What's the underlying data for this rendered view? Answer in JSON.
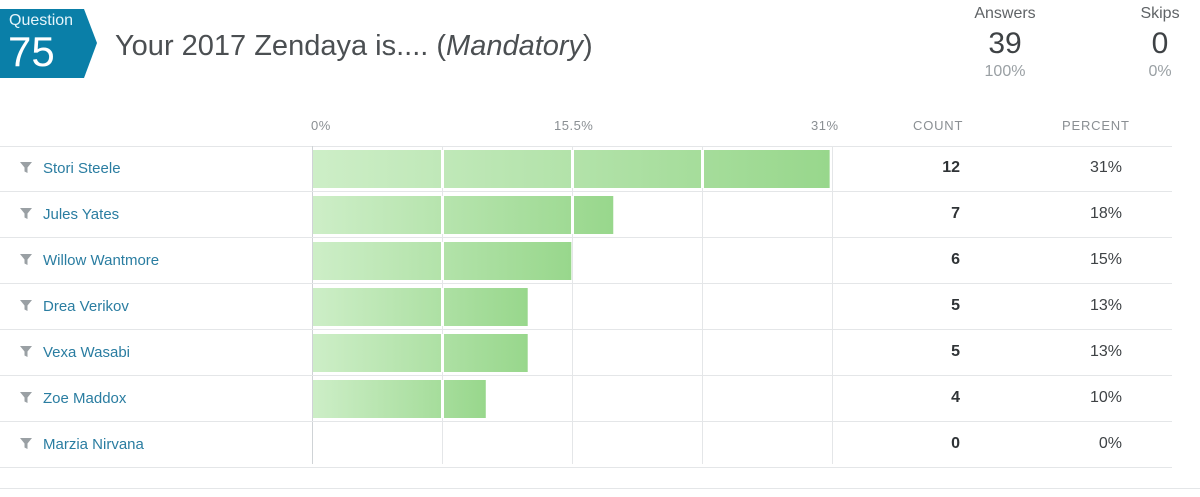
{
  "question": {
    "badge_label": "Question",
    "number": "75",
    "title": "Your 2017 Zendaya is.... (",
    "title_emphasis": "Mandatory",
    "title_suffix": ")"
  },
  "stats": {
    "answers_label": "Answers",
    "answers_value": "39",
    "answers_pct": "100%",
    "skips_label": "Skips",
    "skips_value": "0",
    "skips_pct": "0%"
  },
  "table": {
    "count_header": "COUNT",
    "percent_header": "PERCENT",
    "axis_ticks": [
      "0%",
      "15.5%",
      "31%"
    ],
    "rows": [
      {
        "label": "Stori Steele",
        "count": "12",
        "percent": "31%"
      },
      {
        "label": "Jules Yates",
        "count": "7",
        "percent": "18%"
      },
      {
        "label": "Willow Wantmore",
        "count": "6",
        "percent": "15%"
      },
      {
        "label": "Drea Verikov",
        "count": "5",
        "percent": "13%"
      },
      {
        "label": "Vexa Wasabi",
        "count": "5",
        "percent": "13%"
      },
      {
        "label": "Zoe Maddox",
        "count": "4",
        "percent": "10%"
      },
      {
        "label": "Marzia Nirvana",
        "count": "0",
        "percent": "0%"
      }
    ]
  },
  "chart_data": {
    "type": "bar",
    "orientation": "horizontal",
    "categories": [
      "Stori Steele",
      "Jules Yates",
      "Willow Wantmore",
      "Drea Verikov",
      "Vexa Wasabi",
      "Zoe Maddox",
      "Marzia Nirvana"
    ],
    "values": [
      30.8,
      17.9,
      15.4,
      12.8,
      12.8,
      10.3,
      0
    ],
    "xlim": [
      0,
      31
    ],
    "xticks": [
      "0%",
      "15.5%",
      "31%"
    ],
    "grid": true
  },
  "colors": {
    "badge": "#0a7fa8",
    "bar_light": "#c9ebc3",
    "bar_dark": "#9fd994",
    "link": "#2a7da1"
  },
  "icons": {
    "row_filter": "filter-icon"
  }
}
